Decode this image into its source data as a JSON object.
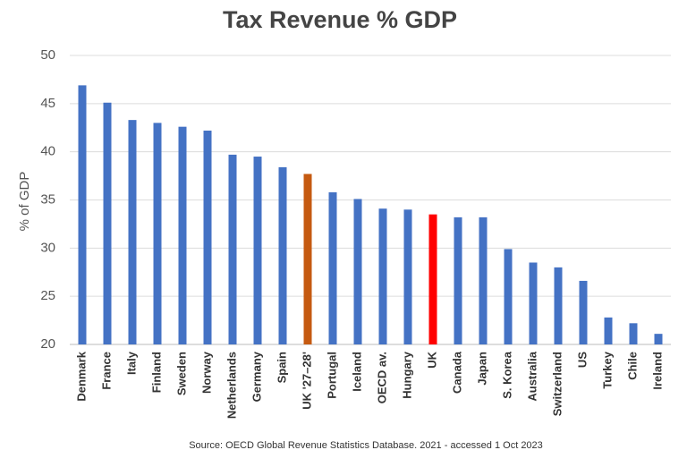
{
  "chart_data": {
    "type": "bar",
    "title": "Tax Revenue % GDP",
    "y_label": "% of GDP",
    "source": "Source: OECD Global Revenue Statistics Database. 2021 - accessed 1 Oct 2023",
    "categories": [
      "Denmark",
      "France",
      "Italy",
      "Finland",
      "Sweden",
      "Norway",
      "Netherlands",
      "Germany",
      "Spain",
      "UK '27–28'",
      "Portugal",
      "Iceland",
      "OECD av.",
      "Hungary",
      "UK",
      "Canada",
      "Japan",
      "S. Korea",
      "Australia",
      "Switzerland",
      "US",
      "Turkey",
      "Chile",
      "Ireland"
    ],
    "values": [
      46.9,
      45.1,
      43.3,
      43.0,
      42.6,
      42.2,
      39.7,
      39.5,
      38.4,
      37.7,
      35.8,
      35.1,
      34.1,
      34.0,
      33.5,
      33.2,
      33.2,
      29.9,
      28.5,
      28.0,
      26.6,
      22.8,
      22.2,
      21.1
    ],
    "colors": [
      "#4472c4",
      "#4472c4",
      "#4472c4",
      "#4472c4",
      "#4472c4",
      "#4472c4",
      "#4472c4",
      "#4472c4",
      "#4472c4",
      "#c55a11",
      "#4472c4",
      "#4472c4",
      "#4472c4",
      "#4472c4",
      "#ff0000",
      "#4472c4",
      "#4472c4",
      "#4472c4",
      "#4472c4",
      "#4472c4",
      "#4472c4",
      "#4472c4",
      "#4472c4",
      "#4472c4"
    ],
    "ylim": [
      20,
      50
    ],
    "yticks": [
      20,
      25,
      30,
      35,
      40,
      45,
      50
    ],
    "grid": true
  }
}
